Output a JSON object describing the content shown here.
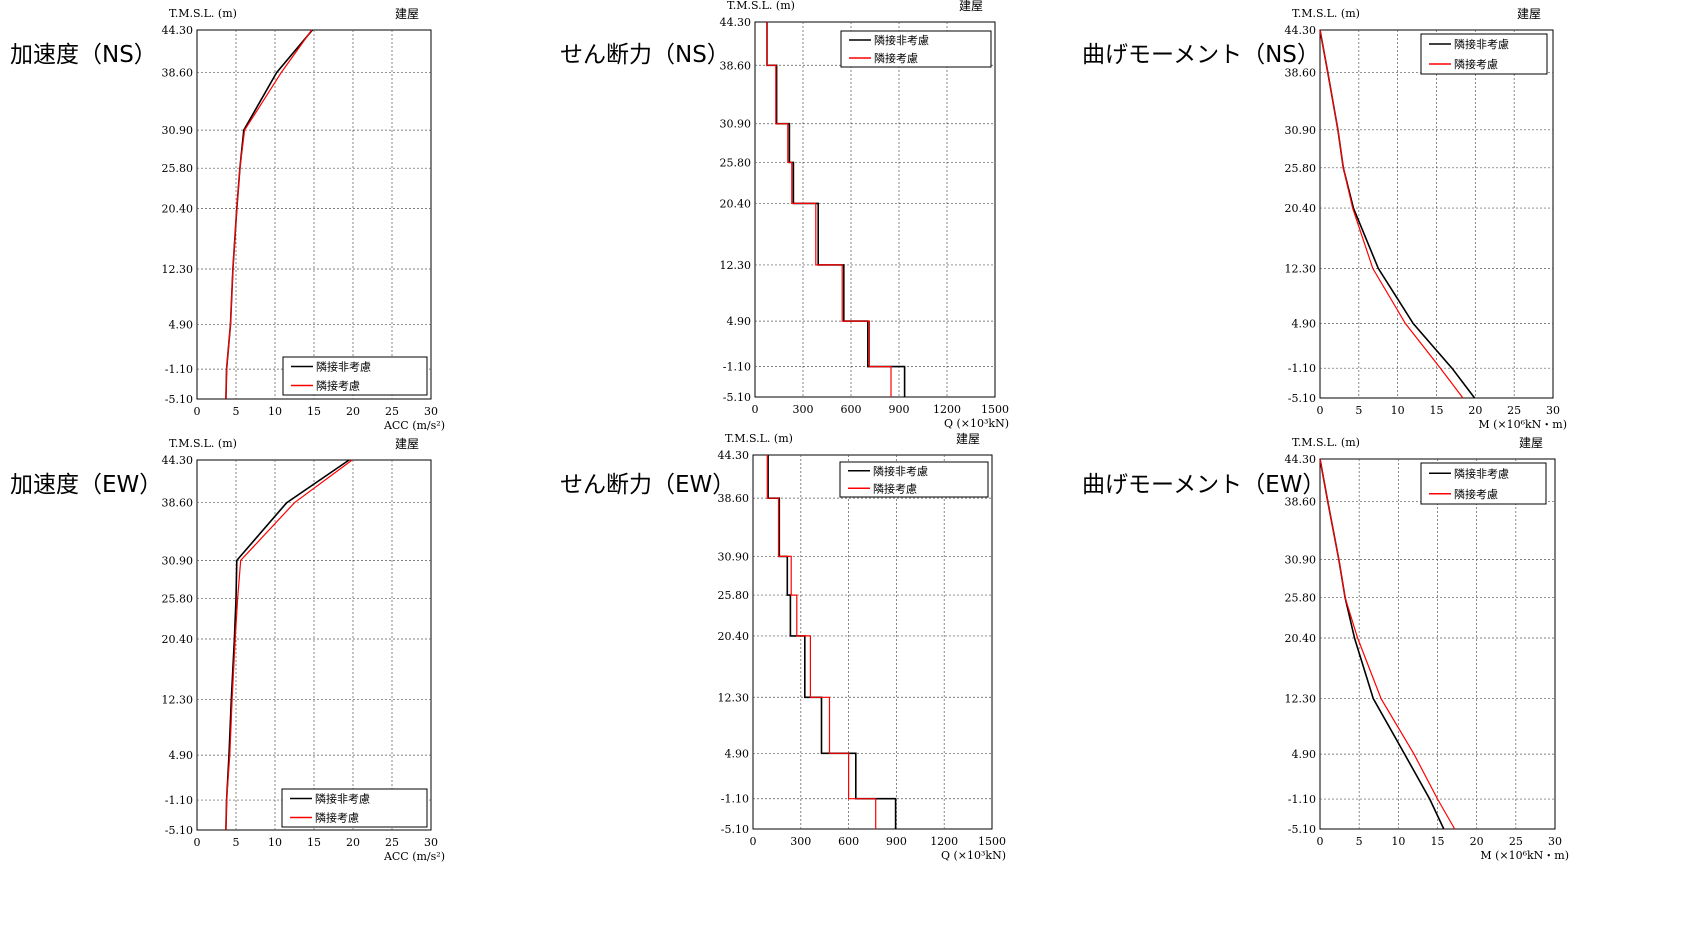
{
  "panel_titles": {
    "acc_ns": "加速度（NS）",
    "shear_ns": "せん断力（NS）",
    "moment_ns": "曲げモーメント（NS）",
    "acc_ew": "加速度（EW）",
    "shear_ew": "せん断力（EW）",
    "moment_ew": "曲げモーメント（EW）"
  },
  "chart_data": [
    {
      "id": "acc_ns",
      "type": "line",
      "ylabel": "T.M.S.L. (m)",
      "building_label": "建屋",
      "xlabel": "ACC (m/s²)",
      "xlim": [
        0,
        30
      ],
      "xticks": [
        0,
        5,
        10,
        15,
        20,
        25,
        30
      ],
      "ylevels": [
        44.3,
        38.6,
        30.9,
        25.8,
        20.4,
        12.3,
        4.9,
        -1.1,
        -5.1
      ],
      "ylevel_labels": [
        "44.30",
        "38.60",
        "30.90",
        "25.80",
        "20.40",
        "12.30",
        "4.90",
        "-1.10",
        "-5.10"
      ],
      "legend_position": "bottom-right",
      "series": [
        {
          "name": "隣接非考慮",
          "color": "#000000",
          "values": [
            14.8,
            10.2,
            6.0,
            5.5,
            5.1,
            4.6,
            4.3,
            3.8,
            3.7
          ]
        },
        {
          "name": "隣接考慮",
          "color": "#ff0000",
          "values": [
            14.7,
            10.8,
            6.1,
            5.5,
            5.1,
            4.6,
            4.3,
            3.8,
            3.7
          ]
        }
      ]
    },
    {
      "id": "shear_ns",
      "type": "line",
      "ylabel": "T.M.S.L. (m)",
      "building_label": "建屋",
      "xlabel": "Q (×10³kN)",
      "xlim": [
        0,
        1500
      ],
      "xticks": [
        0,
        300,
        600,
        900,
        1200,
        1500
      ],
      "ylevels": [
        44.3,
        38.6,
        30.9,
        25.8,
        20.4,
        12.3,
        4.9,
        -1.1,
        -5.1
      ],
      "ylevel_labels": [
        "44.30",
        "38.60",
        "30.90",
        "25.80",
        "20.40",
        "12.30",
        "4.90",
        "-1.10",
        "-5.10"
      ],
      "legend_position": "top-right",
      "series": [
        {
          "name": "隣接非考慮",
          "color": "#000000",
          "values": [
            75,
            135,
            215,
            240,
            395,
            555,
            705,
            935
          ]
        },
        {
          "name": "隣接考慮",
          "color": "#ff0000",
          "values": [
            75,
            130,
            205,
            230,
            380,
            545,
            715,
            850
          ]
        }
      ]
    },
    {
      "id": "moment_ns",
      "type": "line",
      "ylabel": "T.M.S.L. (m)",
      "building_label": "建屋",
      "xlabel": "M (×10⁶kN・m)",
      "xlim": [
        0,
        30
      ],
      "xticks": [
        0,
        5,
        10,
        15,
        20,
        25,
        30
      ],
      "ylevels": [
        44.3,
        38.6,
        30.9,
        25.8,
        20.4,
        12.3,
        4.9,
        -1.1,
        -5.1
      ],
      "ylevel_labels": [
        "44.30",
        "38.60",
        "30.90",
        "25.80",
        "20.40",
        "12.30",
        "4.90",
        "-1.10",
        "-5.10"
      ],
      "legend_position": "top-right",
      "series": [
        {
          "name": "隣接非考慮",
          "color": "#000000",
          "values": [
            0,
            1.0,
            2.3,
            3.0,
            4.3,
            7.5,
            12.0,
            17.0,
            19.9
          ]
        },
        {
          "name": "隣接考慮",
          "color": "#ff0000",
          "values": [
            0,
            1.0,
            2.3,
            3.0,
            4.2,
            6.8,
            11.0,
            15.5,
            18.4
          ]
        }
      ]
    },
    {
      "id": "acc_ew",
      "type": "line",
      "ylabel": "T.M.S.L. (m)",
      "building_label": "建屋",
      "xlabel": "ACC (m/s²)",
      "xlim": [
        0,
        30
      ],
      "xticks": [
        0,
        5,
        10,
        15,
        20,
        25,
        30
      ],
      "ylevels": [
        44.3,
        38.6,
        30.9,
        25.8,
        20.4,
        12.3,
        4.9,
        -1.1,
        -5.1
      ],
      "ylevel_labels": [
        "44.30",
        "38.60",
        "30.90",
        "25.80",
        "20.40",
        "12.30",
        "4.90",
        "-1.10",
        "-5.10"
      ],
      "legend_position": "bottom-right",
      "series": [
        {
          "name": "隣接非考慮",
          "color": "#000000",
          "values": [
            19.5,
            11.5,
            5.1,
            5.0,
            4.8,
            4.4,
            4.1,
            3.8,
            3.7
          ]
        },
        {
          "name": "隣接考慮",
          "color": "#ff0000",
          "values": [
            19.9,
            12.5,
            5.6,
            5.2,
            4.9,
            4.5,
            4.2,
            3.8,
            3.7
          ]
        }
      ]
    },
    {
      "id": "shear_ew",
      "type": "line",
      "ylabel": "T.M.S.L. (m)",
      "building_label": "建屋",
      "xlabel": "Q (×10³kN)",
      "xlim": [
        0,
        1500
      ],
      "xticks": [
        0,
        300,
        600,
        900,
        1200,
        1500
      ],
      "ylevels": [
        44.3,
        38.6,
        30.9,
        25.8,
        20.4,
        12.3,
        4.9,
        -1.1,
        -5.1
      ],
      "ylevel_labels": [
        "44.30",
        "38.60",
        "30.90",
        "25.80",
        "20.40",
        "12.30",
        "4.90",
        "-1.10",
        "-5.10"
      ],
      "legend_position": "top-right",
      "series": [
        {
          "name": "隣接非考慮",
          "color": "#000000",
          "values": [
            95,
            165,
            215,
            235,
            325,
            430,
            645,
            895
          ]
        },
        {
          "name": "隣接考慮",
          "color": "#ff0000",
          "values": [
            90,
            160,
            240,
            275,
            360,
            480,
            600,
            770
          ]
        }
      ]
    },
    {
      "id": "moment_ew",
      "type": "line",
      "ylabel": "T.M.S.L. (m)",
      "building_label": "建屋",
      "xlabel": "M (×10⁶kN・m)",
      "xlim": [
        0,
        30
      ],
      "xticks": [
        0,
        5,
        10,
        15,
        20,
        25,
        30
      ],
      "ylevels": [
        44.3,
        38.6,
        30.9,
        25.8,
        20.4,
        12.3,
        4.9,
        -1.1,
        -5.1
      ],
      "ylevel_labels": [
        "44.30",
        "38.60",
        "30.90",
        "25.80",
        "20.40",
        "12.30",
        "4.90",
        "-1.10",
        "-5.10"
      ],
      "legend_position": "top-right",
      "series": [
        {
          "name": "隣接非考慮",
          "color": "#000000",
          "values": [
            0,
            1.0,
            2.4,
            3.2,
            4.4,
            6.8,
            10.8,
            14.0,
            15.8
          ]
        },
        {
          "name": "隣接考慮",
          "color": "#ff0000",
          "values": [
            0,
            1.0,
            2.4,
            3.2,
            4.8,
            7.8,
            12.0,
            15.0,
            17.2
          ]
        }
      ]
    }
  ]
}
